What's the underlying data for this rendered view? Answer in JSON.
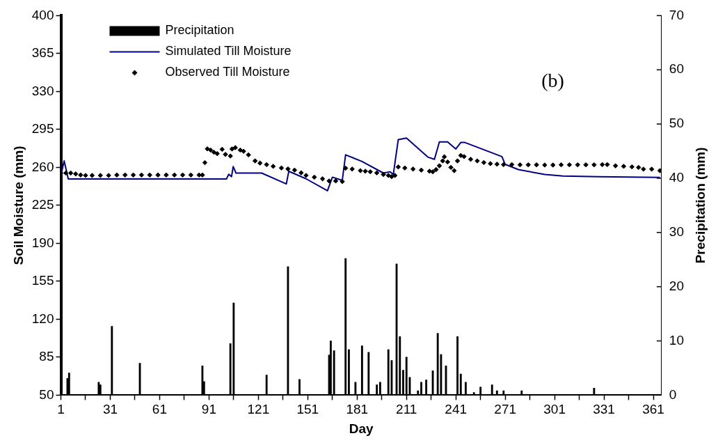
{
  "chart_data": {
    "type": "bar",
    "xlabel": "Day",
    "ylabel": "Soil Moisture (mm)",
    "y2label": "Precipitation (mm)",
    "xlim": [
      1,
      366
    ],
    "xticks": [
      1,
      {
        "value": 16,
        "label": null
      },
      31,
      {
        "value": 46,
        "label": null
      },
      61,
      {
        "value": 76,
        "label": null
      },
      91,
      {
        "value": 106,
        "label": null
      },
      121,
      {
        "value": 136,
        "label": null
      },
      151,
      {
        "value": 166,
        "label": null
      },
      181,
      {
        "value": 196,
        "label": null
      },
      211,
      {
        "value": 226,
        "label": null
      },
      241,
      {
        "value": 256,
        "label": null
      },
      271,
      {
        "value": 286,
        "label": null
      },
      301,
      {
        "value": 316,
        "label": null
      },
      331,
      {
        "value": 346,
        "label": null
      },
      361
    ],
    "ylim": [
      50,
      400
    ],
    "yticks": [
      50,
      85,
      120,
      155,
      190,
      225,
      260,
      295,
      330,
      365,
      400
    ],
    "y2lim": [
      0,
      70
    ],
    "y2ticks": [
      0,
      10,
      20,
      30,
      40,
      50,
      60,
      70
    ],
    "grid": false,
    "legend": "top left",
    "annotations": [
      "(b)"
    ],
    "series": [
      {
        "name": "Precipitation",
        "axis": "y2",
        "color": "#000000",
        "x": [
          5,
          6,
          24,
          25,
          32,
          49,
          87,
          88,
          104,
          106,
          126,
          139,
          146,
          164,
          165,
          167,
          174,
          176,
          180,
          184,
          188,
          193,
          195,
          200,
          202,
          205,
          207,
          209,
          211,
          213,
          218,
          220,
          223,
          227,
          230,
          232,
          235,
          242,
          244,
          247,
          252,
          256,
          263,
          266,
          270,
          281,
          325
        ],
        "values": [
          3.1,
          4.1,
          2.4,
          1.9,
          12.7,
          5.9,
          5.4,
          2.5,
          9.5,
          17.0,
          3.7,
          23.7,
          2.9,
          7.4,
          10.0,
          8.2,
          25.2,
          8.4,
          2.4,
          9.1,
          7.9,
          1.9,
          2.4,
          8.4,
          6.4,
          24.2,
          10.8,
          4.6,
          7.0,
          3.3,
          0.8,
          2.4,
          2.8,
          4.5,
          11.4,
          7.5,
          5.4,
          10.8,
          3.9,
          2.4,
          0.5,
          1.5,
          1.9,
          0.8,
          0.8,
          0.8,
          1.3
        ]
      },
      {
        "name": "Simulated Till Moisture",
        "type": "line",
        "color": "#000080",
        "x": [
          1,
          3,
          5.5,
          101.6,
          103,
          104.7,
          105.7,
          107.4,
          123,
          138,
          139.5,
          150,
          163,
          166,
          172,
          174,
          184,
          197,
          201,
          203,
          206,
          211,
          224,
          228,
          231,
          236,
          241,
          244,
          246.5,
          269,
          271,
          279,
          295,
          306,
          328,
          365
        ],
        "values": [
          252.6,
          266,
          249.3,
          249.3,
          253.7,
          251.5,
          260.8,
          254.8,
          254.8,
          244.8,
          256.4,
          249.5,
          238.5,
          251,
          248.1,
          271.6,
          265.5,
          254.8,
          256,
          253.5,
          285.6,
          287,
          269.5,
          267.5,
          283.6,
          283.6,
          277,
          283,
          283,
          270,
          262.8,
          258,
          253.5,
          252,
          251.5,
          250.8
        ]
      },
      {
        "name": "Observed Till Moisture",
        "type": "scatter",
        "marker": "diamond",
        "color": "#000000",
        "x": [
          1,
          4,
          7,
          10,
          13,
          16,
          20,
          25,
          30,
          35,
          40,
          45,
          50,
          55,
          60,
          65,
          70,
          75,
          80,
          85,
          87,
          88.5,
          90,
          92,
          94,
          96,
          99,
          101,
          104,
          105,
          107,
          110,
          112,
          115,
          119,
          122,
          126,
          130,
          135,
          139,
          143,
          147,
          150,
          155,
          160,
          164,
          168,
          172,
          174,
          178,
          183,
          186,
          189,
          193,
          197,
          200,
          202,
          204,
          206,
          210,
          215,
          220,
          225,
          227,
          229,
          231,
          233,
          234,
          236,
          238,
          240,
          242,
          244,
          246,
          250,
          254,
          258,
          262,
          266,
          270,
          275,
          280,
          285,
          290,
          295,
          300,
          305,
          310,
          315,
          320,
          325,
          330,
          333,
          338,
          343,
          348,
          352,
          355,
          360,
          365
        ],
        "values": [
          254.8,
          254.8,
          254.8,
          254,
          253,
          252.6,
          252.6,
          252.6,
          252.6,
          253,
          253,
          253,
          253,
          253,
          253,
          253,
          253,
          253,
          253,
          253,
          253,
          264.4,
          277.1,
          276,
          274,
          272.7,
          276.7,
          272,
          270.5,
          277,
          278.2,
          276,
          274.9,
          271.6,
          266,
          264,
          262.6,
          261,
          259.5,
          258.6,
          257.5,
          255,
          252.6,
          251,
          249.5,
          247.5,
          247.5,
          247,
          259.3,
          258.5,
          257,
          256.5,
          256,
          255,
          253.5,
          252.6,
          251.5,
          252.6,
          260.4,
          259.5,
          258.5,
          257.5,
          256.5,
          256,
          258,
          261.5,
          266,
          269.8,
          265,
          260,
          257,
          266,
          271,
          270,
          267.5,
          266,
          264.5,
          263.5,
          263,
          262.6,
          262.6,
          262.4,
          262.4,
          262.4,
          262.2,
          262.2,
          262.4,
          262.4,
          262.4,
          262.4,
          262.4,
          262.6,
          262.6,
          261.5,
          261,
          260.5,
          260,
          258.4,
          258.4,
          257
        ]
      }
    ]
  }
}
